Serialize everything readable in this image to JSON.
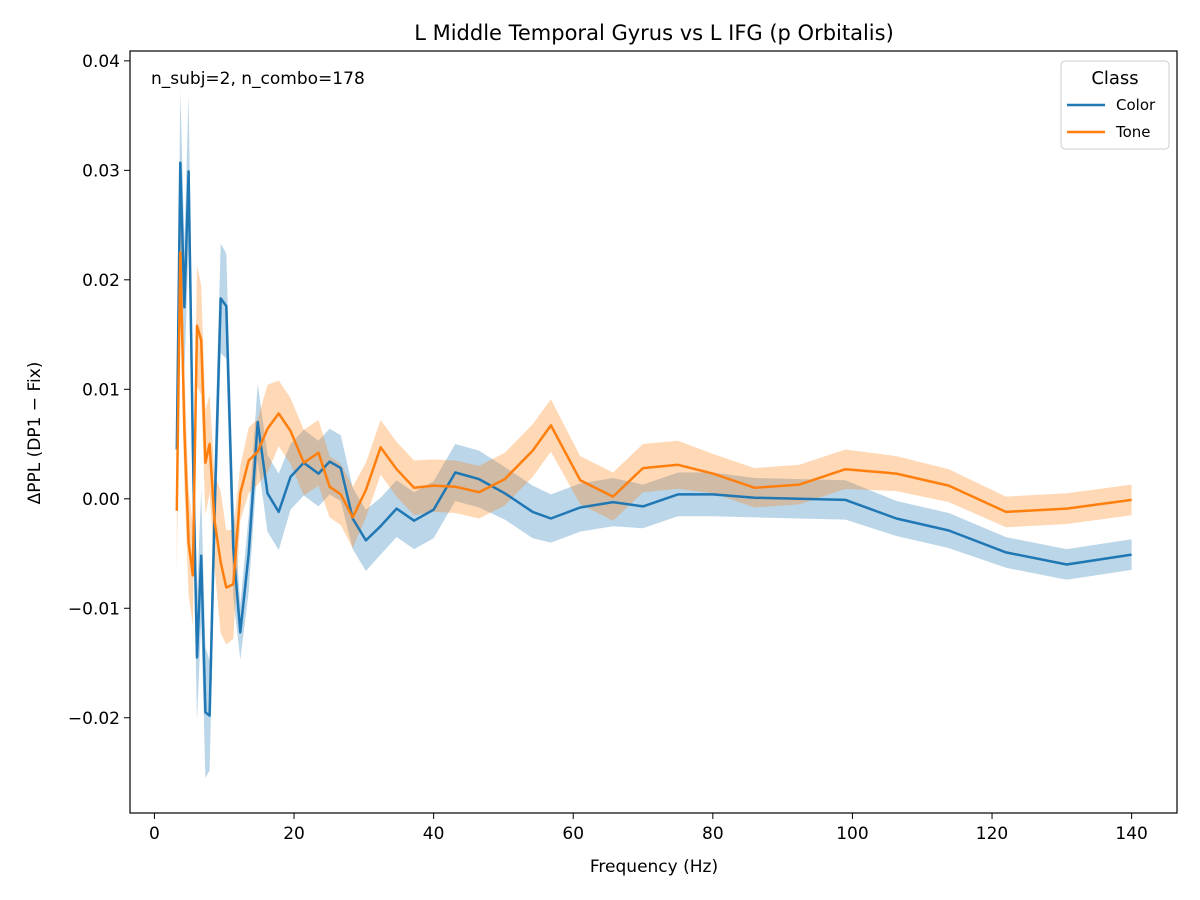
{
  "chart_data": {
    "type": "line",
    "title": "L Middle Temporal Gyrus vs L IFG (p Orbitalis)",
    "xlabel": "Frequency (Hz)",
    "ylabel": "ΔPPL (DP1 − Fix)",
    "annotation": "n_subj=2, n_combo=178",
    "xlim": [
      -3.5,
      146.5
    ],
    "ylim": [
      -0.0287,
      0.0409
    ],
    "xticks": [
      0,
      20,
      40,
      60,
      80,
      100,
      120,
      140
    ],
    "xtick_labels": [
      "0",
      "20",
      "40",
      "60",
      "80",
      "100",
      "120",
      "140"
    ],
    "yticks": [
      -0.02,
      -0.01,
      0.0,
      0.01,
      0.02,
      0.03,
      0.04
    ],
    "ytick_labels": [
      "−0.02",
      "−0.01",
      "0.00",
      "0.01",
      "0.02",
      "0.03",
      "0.04"
    ],
    "grid": false,
    "legend": {
      "title": "Class",
      "position": "top-right"
    },
    "x": [
      3.2,
      3.7,
      4.3,
      4.9,
      5.5,
      6.1,
      6.7,
      7.3,
      7.9,
      8.6,
      9.5,
      10.3,
      11.3,
      12.3,
      13.5,
      14.8,
      16.2,
      17.8,
      19.5,
      21.4,
      23.5,
      25.1,
      26.7,
      28.4,
      30.3,
      32.4,
      34.7,
      37.2,
      40.0,
      43.1,
      46.5,
      50.2,
      54.2,
      56.8,
      61.0,
      65.7,
      70.0,
      75.0,
      80.0,
      86.0,
      92.4,
      99.0,
      106.3,
      113.8,
      122.0,
      130.7,
      140.0
    ],
    "series": [
      {
        "name": "Color",
        "color": "#1f77b4",
        "values": [
          0.0045,
          0.0307,
          0.0175,
          0.0299,
          0.005,
          -0.0145,
          -0.0052,
          -0.0195,
          -0.0198,
          -0.0015,
          0.0183,
          0.0176,
          -0.0045,
          -0.0122,
          -0.005,
          0.007,
          0.0005,
          -0.0012,
          0.002,
          0.0033,
          0.0023,
          0.0034,
          0.0028,
          -0.0018,
          -0.0038,
          -0.0025,
          -0.0009,
          -0.002,
          -0.001,
          0.0024,
          0.0018,
          0.0005,
          -0.0012,
          -0.0018,
          -0.0008,
          -0.0003,
          -0.0007,
          0.0004,
          0.0004,
          0.0001,
          0.0,
          -0.0001,
          -0.0018,
          -0.0029,
          -0.0049,
          -0.006,
          -0.0051
        ],
        "band_halfwidth": [
          0.004,
          0.0065,
          0.006,
          0.007,
          0.006,
          0.0058,
          0.006,
          0.006,
          0.005,
          0.0048,
          0.005,
          0.0048,
          0.0045,
          0.0025,
          0.0035,
          0.0035,
          0.0035,
          0.0035,
          0.003,
          0.003,
          0.003,
          0.003,
          0.003,
          0.0028,
          0.0028,
          0.0026,
          0.0026,
          0.0026,
          0.0026,
          0.0026,
          0.0026,
          0.0024,
          0.0024,
          0.0022,
          0.0022,
          0.0022,
          0.002,
          0.002,
          0.002,
          0.0018,
          0.0018,
          0.0018,
          0.0016,
          0.0016,
          0.0014,
          0.0014,
          0.0014
        ]
      },
      {
        "name": "Tone",
        "color": "#ff7f0e",
        "values": [
          -0.0011,
          0.0225,
          0.0062,
          -0.004,
          -0.007,
          0.0158,
          0.0145,
          0.0033,
          0.005,
          -0.002,
          -0.0058,
          -0.0081,
          -0.0078,
          0.0005,
          0.0035,
          0.0043,
          0.0064,
          0.0078,
          0.0062,
          0.0033,
          0.0042,
          0.0011,
          0.0004,
          -0.0017,
          0.0008,
          0.0047,
          0.0027,
          0.001,
          0.0012,
          0.0011,
          0.0006,
          0.0018,
          0.0044,
          0.0067,
          0.0017,
          0.0002,
          0.0028,
          0.0031,
          0.0023,
          0.001,
          0.0013,
          0.0027,
          0.0023,
          0.0012,
          -0.0012,
          -0.0009,
          -0.0001
        ],
        "band_halfwidth": [
          0.006,
          0.005,
          0.0052,
          0.0048,
          0.0045,
          0.0055,
          0.005,
          0.0048,
          0.0045,
          0.0042,
          0.0065,
          0.0052,
          0.005,
          0.0025,
          0.003,
          0.003,
          0.004,
          0.003,
          0.003,
          0.003,
          0.003,
          0.0028,
          0.0028,
          0.0028,
          0.0025,
          0.0025,
          0.0025,
          0.0025,
          0.0024,
          0.0024,
          0.0024,
          0.0024,
          0.0024,
          0.0024,
          0.0022,
          0.0022,
          0.0022,
          0.0022,
          0.0018,
          0.0018,
          0.0018,
          0.0018,
          0.0016,
          0.0015,
          0.0014,
          0.0014,
          0.0014
        ]
      }
    ]
  }
}
